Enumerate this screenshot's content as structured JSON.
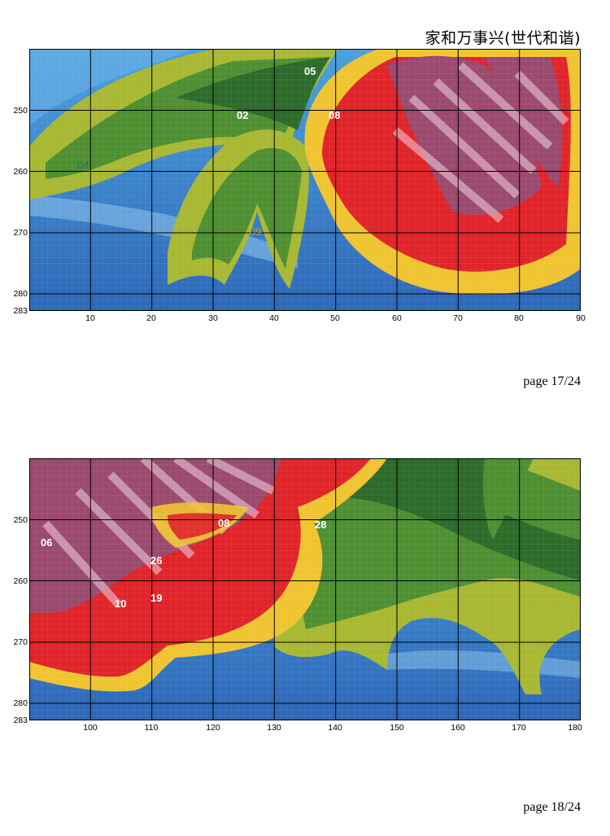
{
  "header": {
    "title": "家和万事兴(世代和谐)"
  },
  "pages": [
    {
      "page_label": "page 17/24",
      "y_labels": [
        "250",
        "260",
        "270",
        "280",
        "283"
      ],
      "x_labels": [
        "10",
        "20",
        "30",
        "40",
        "50",
        "60",
        "70",
        "80",
        "90"
      ],
      "codes": [
        {
          "text": "05",
          "color": "#ffffff"
        },
        {
          "text": "02",
          "color": "#ffffff"
        },
        {
          "text": "08",
          "color": "#ffffff"
        },
        {
          "text": "04",
          "color": "#2d6b63"
        },
        {
          "text": "09",
          "color": "#b8a431"
        }
      ]
    },
    {
      "page_label": "page 18/24",
      "y_labels": [
        "250",
        "260",
        "270",
        "280",
        "283"
      ],
      "x_labels": [
        "100",
        "110",
        "120",
        "130",
        "140",
        "150",
        "160",
        "170",
        "180"
      ],
      "codes": [
        {
          "text": "08",
          "color": "#ffffff"
        },
        {
          "text": "28",
          "color": "#ffffff"
        },
        {
          "text": "06",
          "color": "#ffffff"
        },
        {
          "text": "26",
          "color": "#ffffff"
        },
        {
          "text": "10",
          "color": "#ffffff"
        },
        {
          "text": "19",
          "color": "#ffffff"
        }
      ]
    }
  ],
  "colors": {
    "water_light": "#5aa8e0",
    "water_dark": "#2f6fbe",
    "leaf_dark": "#2c6b2a",
    "leaf_mid": "#4f8f32",
    "leaf_light": "#a8b832",
    "yellow": "#f0c430",
    "red": "#e0242a",
    "mauve": "#9a4a6e",
    "pink": "#f3d0e0"
  },
  "icons": {
    "grid": "cross-stitch-grid"
  }
}
